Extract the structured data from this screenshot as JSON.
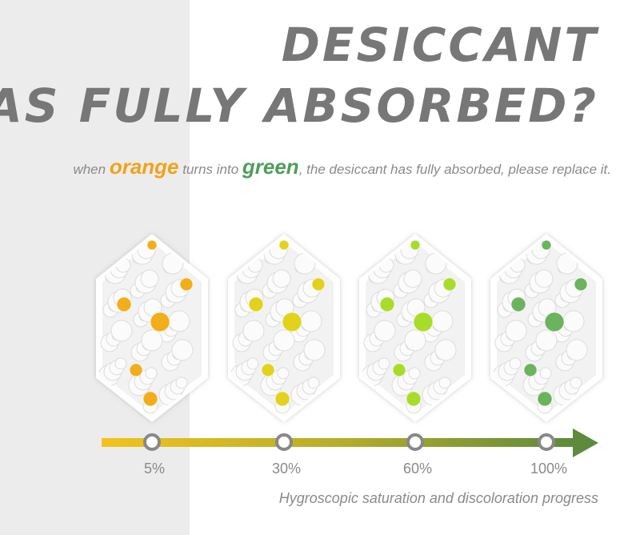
{
  "header": {
    "title_lines": [
      "DESICCANT",
      "HAS FULLY ABSORBED?"
    ],
    "subtitle": {
      "before": "when ",
      "orange": "orange",
      "middle": " turns into ",
      "green": "green",
      "after": ", the desiccant has fully absorbed, please replace it."
    }
  },
  "stages": [
    {
      "label": "5%",
      "color": "#f2ad1a"
    },
    {
      "label": "30%",
      "color": "#e2d21c"
    },
    {
      "label": "60%",
      "color": "#a8dc2a"
    },
    {
      "label": "100%",
      "color": "#6bb35c"
    }
  ],
  "caption": "Hygroscopic saturation and discoloration progress"
}
